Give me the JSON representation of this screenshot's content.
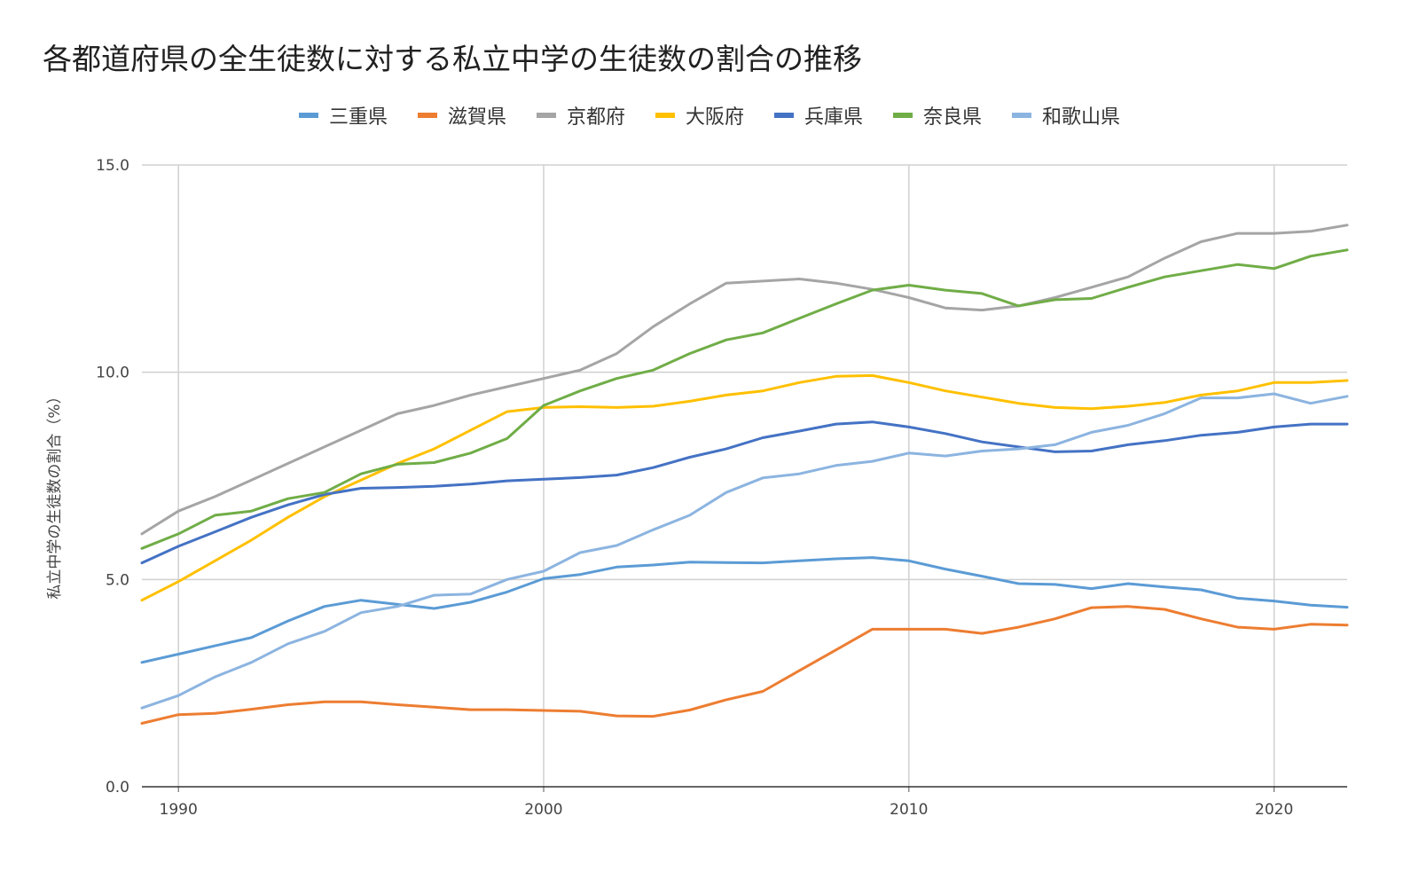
{
  "chart_data": {
    "type": "line",
    "title": "各都道府県の全生徒数に対する私立中学の生徒数の割合の推移",
    "ylabel": "私立中学の生徒数の割合（%）",
    "xlabel": "",
    "xlim": [
      1989,
      2022
    ],
    "ylim": [
      0,
      15
    ],
    "xticks": [
      1990,
      2000,
      2010,
      2020
    ],
    "yticks": [
      0,
      5,
      10,
      15
    ],
    "xtick_labels": [
      "1990",
      "2000",
      "2010",
      "2020"
    ],
    "ytick_labels": [
      "0.0",
      "5.0",
      "10.0",
      "15.0"
    ],
    "grid": true,
    "legend_position": "top",
    "x": [
      1989,
      1990,
      1991,
      1992,
      1993,
      1994,
      1995,
      1996,
      1997,
      1998,
      1999,
      2000,
      2001,
      2002,
      2003,
      2004,
      2005,
      2006,
      2007,
      2008,
      2009,
      2010,
      2011,
      2012,
      2013,
      2014,
      2015,
      2016,
      2017,
      2018,
      2019,
      2020,
      2021,
      2022
    ],
    "series": [
      {
        "name": "三重県",
        "color": "#5b9bd5",
        "values": [
          3.0,
          3.2,
          3.4,
          3.6,
          4.0,
          4.35,
          4.5,
          4.4,
          4.3,
          4.45,
          4.7,
          5.02,
          5.12,
          5.3,
          5.35,
          5.42,
          5.41,
          5.4,
          5.45,
          5.5,
          5.53,
          5.45,
          5.25,
          5.08,
          4.9,
          4.88,
          4.78,
          4.9,
          4.82,
          4.75,
          4.55,
          4.48,
          4.38,
          4.33
        ]
      },
      {
        "name": "滋賀県",
        "color": "#ed7d31",
        "values": [
          1.53,
          1.74,
          1.77,
          1.87,
          1.98,
          2.05,
          2.05,
          1.98,
          1.92,
          1.86,
          1.86,
          1.84,
          1.82,
          1.71,
          1.7,
          1.85,
          2.1,
          2.3,
          2.8,
          3.3,
          3.8,
          3.8,
          3.8,
          3.7,
          3.85,
          4.05,
          4.32,
          4.35,
          4.28,
          4.05,
          3.85,
          3.8,
          3.92,
          3.9
        ]
      },
      {
        "name": "京都府",
        "color": "#a5a5a5",
        "values": [
          6.1,
          6.65,
          7.0,
          7.4,
          7.8,
          8.2,
          8.6,
          9.0,
          9.2,
          9.45,
          9.65,
          9.85,
          10.05,
          10.45,
          11.1,
          11.65,
          12.15,
          12.2,
          12.25,
          12.15,
          12.0,
          11.8,
          11.55,
          11.5,
          11.6,
          11.8,
          12.05,
          12.3,
          12.75,
          13.15,
          13.35,
          13.35,
          13.4,
          13.55
        ]
      },
      {
        "name": "大阪府",
        "color": "#ffc000",
        "values": [
          4.5,
          4.95,
          5.45,
          5.95,
          6.5,
          7.0,
          7.4,
          7.8,
          8.15,
          8.6,
          9.05,
          9.15,
          9.17,
          9.15,
          9.18,
          9.3,
          9.45,
          9.55,
          9.75,
          9.9,
          9.92,
          9.75,
          9.55,
          9.4,
          9.25,
          9.15,
          9.12,
          9.18,
          9.27,
          9.45,
          9.55,
          9.75,
          9.75,
          9.8
        ]
      },
      {
        "name": "兵庫県",
        "color": "#4472c4",
        "values": [
          5.4,
          5.8,
          6.15,
          6.5,
          6.8,
          7.05,
          7.2,
          7.22,
          7.25,
          7.3,
          7.38,
          7.42,
          7.46,
          7.52,
          7.7,
          7.95,
          8.15,
          8.42,
          8.58,
          8.75,
          8.8,
          8.68,
          8.52,
          8.32,
          8.2,
          8.08,
          8.1,
          8.25,
          8.35,
          8.48,
          8.55,
          8.68,
          8.75,
          8.75
        ]
      },
      {
        "name": "奈良県",
        "color": "#70ad47",
        "values": [
          5.75,
          6.1,
          6.55,
          6.65,
          6.95,
          7.1,
          7.55,
          7.78,
          7.82,
          8.05,
          8.4,
          9.2,
          9.55,
          9.85,
          10.05,
          10.45,
          10.78,
          10.95,
          11.3,
          11.65,
          11.98,
          12.1,
          11.98,
          11.9,
          11.6,
          11.75,
          11.78,
          12.05,
          12.3,
          12.45,
          12.6,
          12.5,
          12.8,
          12.95
        ]
      },
      {
        "name": "和歌山県",
        "color": "#8cb4e0",
        "values": [
          1.9,
          2.2,
          2.65,
          3.0,
          3.45,
          3.75,
          4.2,
          4.35,
          4.62,
          4.65,
          5.0,
          5.2,
          5.65,
          5.82,
          6.2,
          6.55,
          7.1,
          7.45,
          7.55,
          7.75,
          7.85,
          8.05,
          7.98,
          8.1,
          8.15,
          8.25,
          8.55,
          8.72,
          9.0,
          9.38,
          9.38,
          9.48,
          9.25,
          9.42
        ]
      }
    ]
  }
}
